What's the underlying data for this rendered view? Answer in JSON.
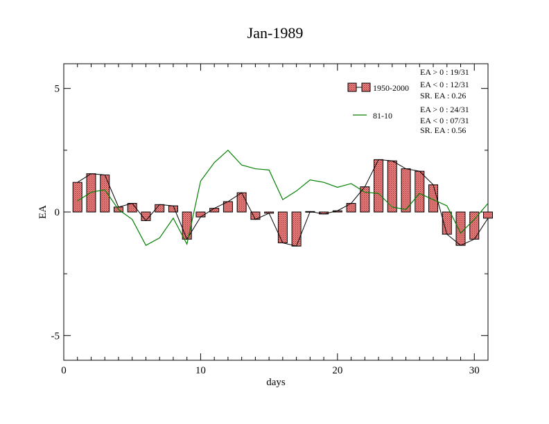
{
  "chart_data": {
    "type": "bar",
    "title": "Jan-1989",
    "xlabel": "days",
    "ylabel": "EA",
    "xlim": [
      0,
      31
    ],
    "ylim": [
      -6,
      6
    ],
    "x_ticks": [
      0,
      10,
      20,
      30
    ],
    "y_ticks": [
      -5,
      0,
      5
    ],
    "x": [
      1,
      2,
      3,
      4,
      5,
      6,
      7,
      8,
      9,
      10,
      11,
      12,
      13,
      14,
      15,
      16,
      17,
      18,
      19,
      20,
      21,
      22,
      23,
      24,
      25,
      26,
      27,
      28,
      29,
      30,
      31
    ],
    "series": [
      {
        "name": "1950-2000",
        "style": "hatched-bar-with-line",
        "color": "#f08080",
        "line_color": "#000000",
        "values": [
          1.2,
          1.55,
          1.5,
          0.2,
          0.35,
          -0.35,
          0.3,
          0.25,
          -1.1,
          -0.2,
          0.15,
          0.42,
          0.78,
          -0.3,
          -0.05,
          -1.25,
          -1.38,
          0.02,
          -0.08,
          0.05,
          0.35,
          1.02,
          2.12,
          2.07,
          1.75,
          1.65,
          1.1,
          -0.9,
          -1.35,
          -1.1,
          -0.25
        ]
      },
      {
        "name": "81-10",
        "style": "line",
        "color": "#008000",
        "values": [
          0.45,
          0.8,
          0.9,
          0.1,
          -0.3,
          -1.35,
          -1.05,
          -0.25,
          -1.3,
          1.25,
          2.0,
          2.5,
          1.9,
          1.75,
          1.7,
          0.5,
          0.85,
          1.3,
          1.2,
          1.0,
          1.15,
          0.8,
          0.75,
          0.2,
          0.1,
          0.75,
          0.5,
          0.25,
          -0.85,
          -0.3,
          0.35
        ]
      }
    ],
    "legend": {
      "placement": "top-right",
      "entries": [
        {
          "label": "1950-2000",
          "stats": [
            "EA > 0 : 19/31",
            "EA < 0 : 12/31",
            "SR. EA :  0.26"
          ]
        },
        {
          "label": "81-10",
          "stats": [
            "EA > 0 : 24/31",
            "EA < 0 : 07/31",
            "SR. EA :  0.56"
          ]
        }
      ]
    }
  }
}
